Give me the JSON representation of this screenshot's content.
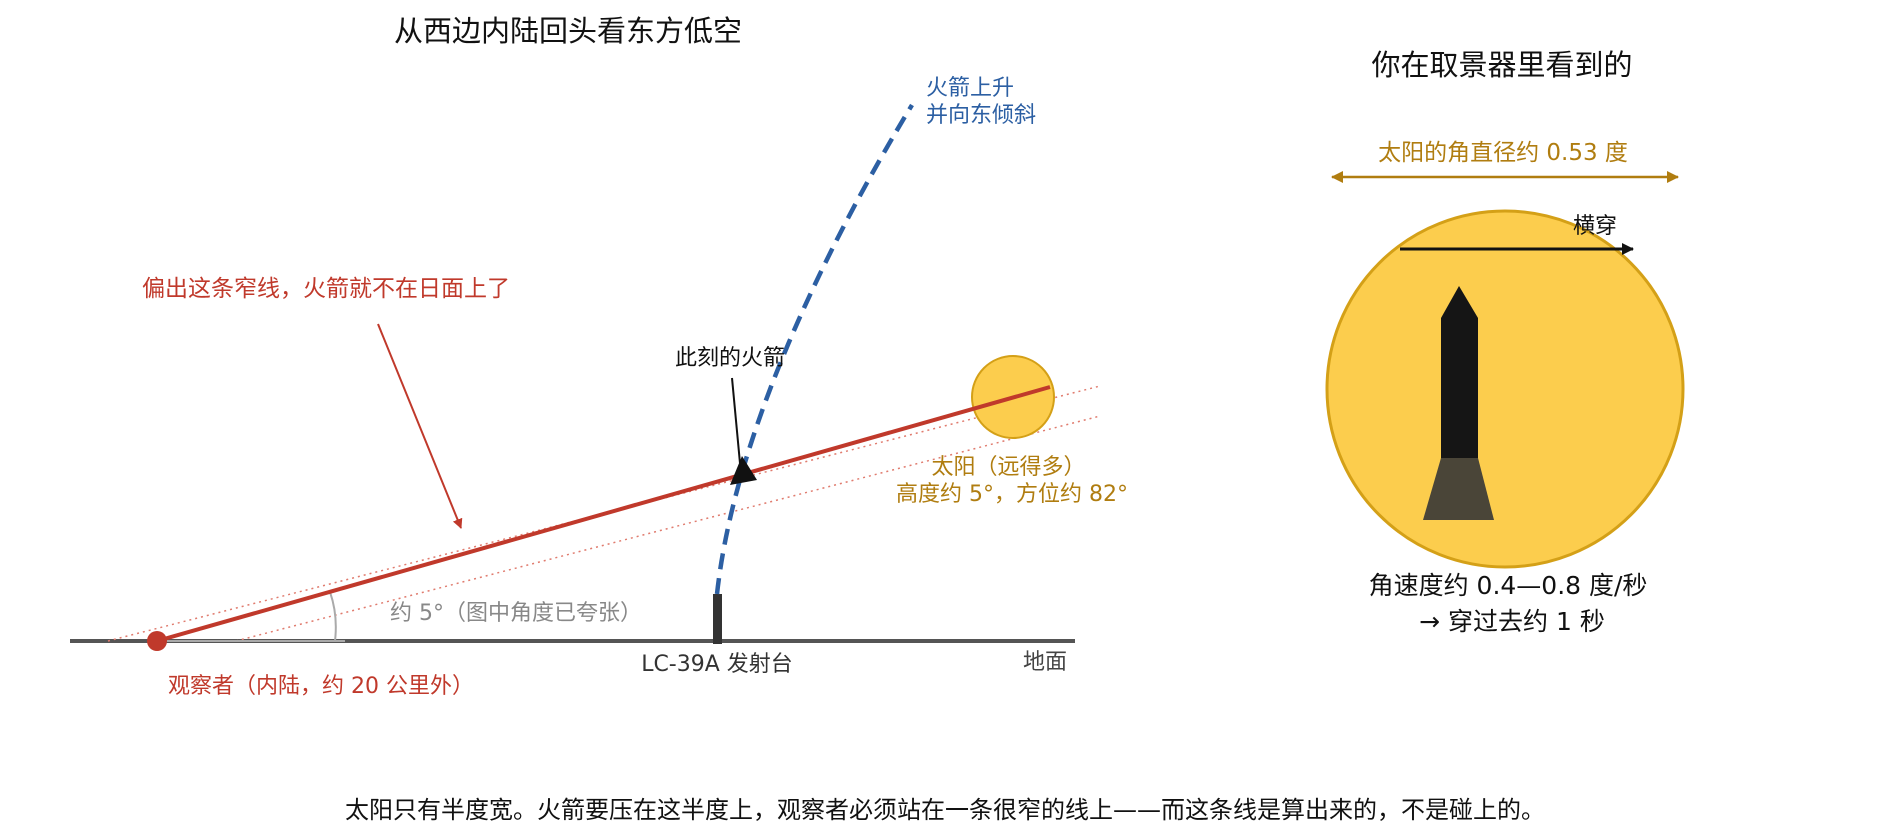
{
  "colors": {
    "observer_red": "#c0392b",
    "rocket_blue": "#2c5fa3",
    "sun_fill": "#fccd4d",
    "sun_stroke": "#d4a017",
    "gold_text": "#b07d10",
    "ground": "#555555",
    "gray_text": "#888888",
    "rocket_body": "#151515",
    "rocket_flame": "#4a4538"
  },
  "left_panel": {
    "title": "从西边内陆回头看东方低空",
    "rocket_path_label": [
      "火箭上升",
      "并向东倾斜"
    ],
    "narrow_line_note": "偏出这条窄线，火箭就不在日面上了",
    "rocket_now_label": "此刻的火箭",
    "sun_label": [
      "太阳（远得多）",
      "高度约 5°，方位约 82°"
    ],
    "angle_label": "约 5°（图中角度已夸张）",
    "pad_label": "LC-39A 发射台",
    "ground_label": "地面",
    "observer_label": "观察者（内陆，约 20 公里外）"
  },
  "right_panel": {
    "title": "你在取景器里看到的",
    "sun_diameter_label": "太阳的角直径约 0.53 度",
    "cross_label": "横穿",
    "speed_label": [
      "角速度约 0.4—0.8 度/秒",
      "→ 穿过去约 1 秒"
    ]
  },
  "caption": "太阳只有半度宽。火箭要压在这半度上，观察者必须站在一条很窄的线上——而这条线是算出来的，不是碰上的。"
}
